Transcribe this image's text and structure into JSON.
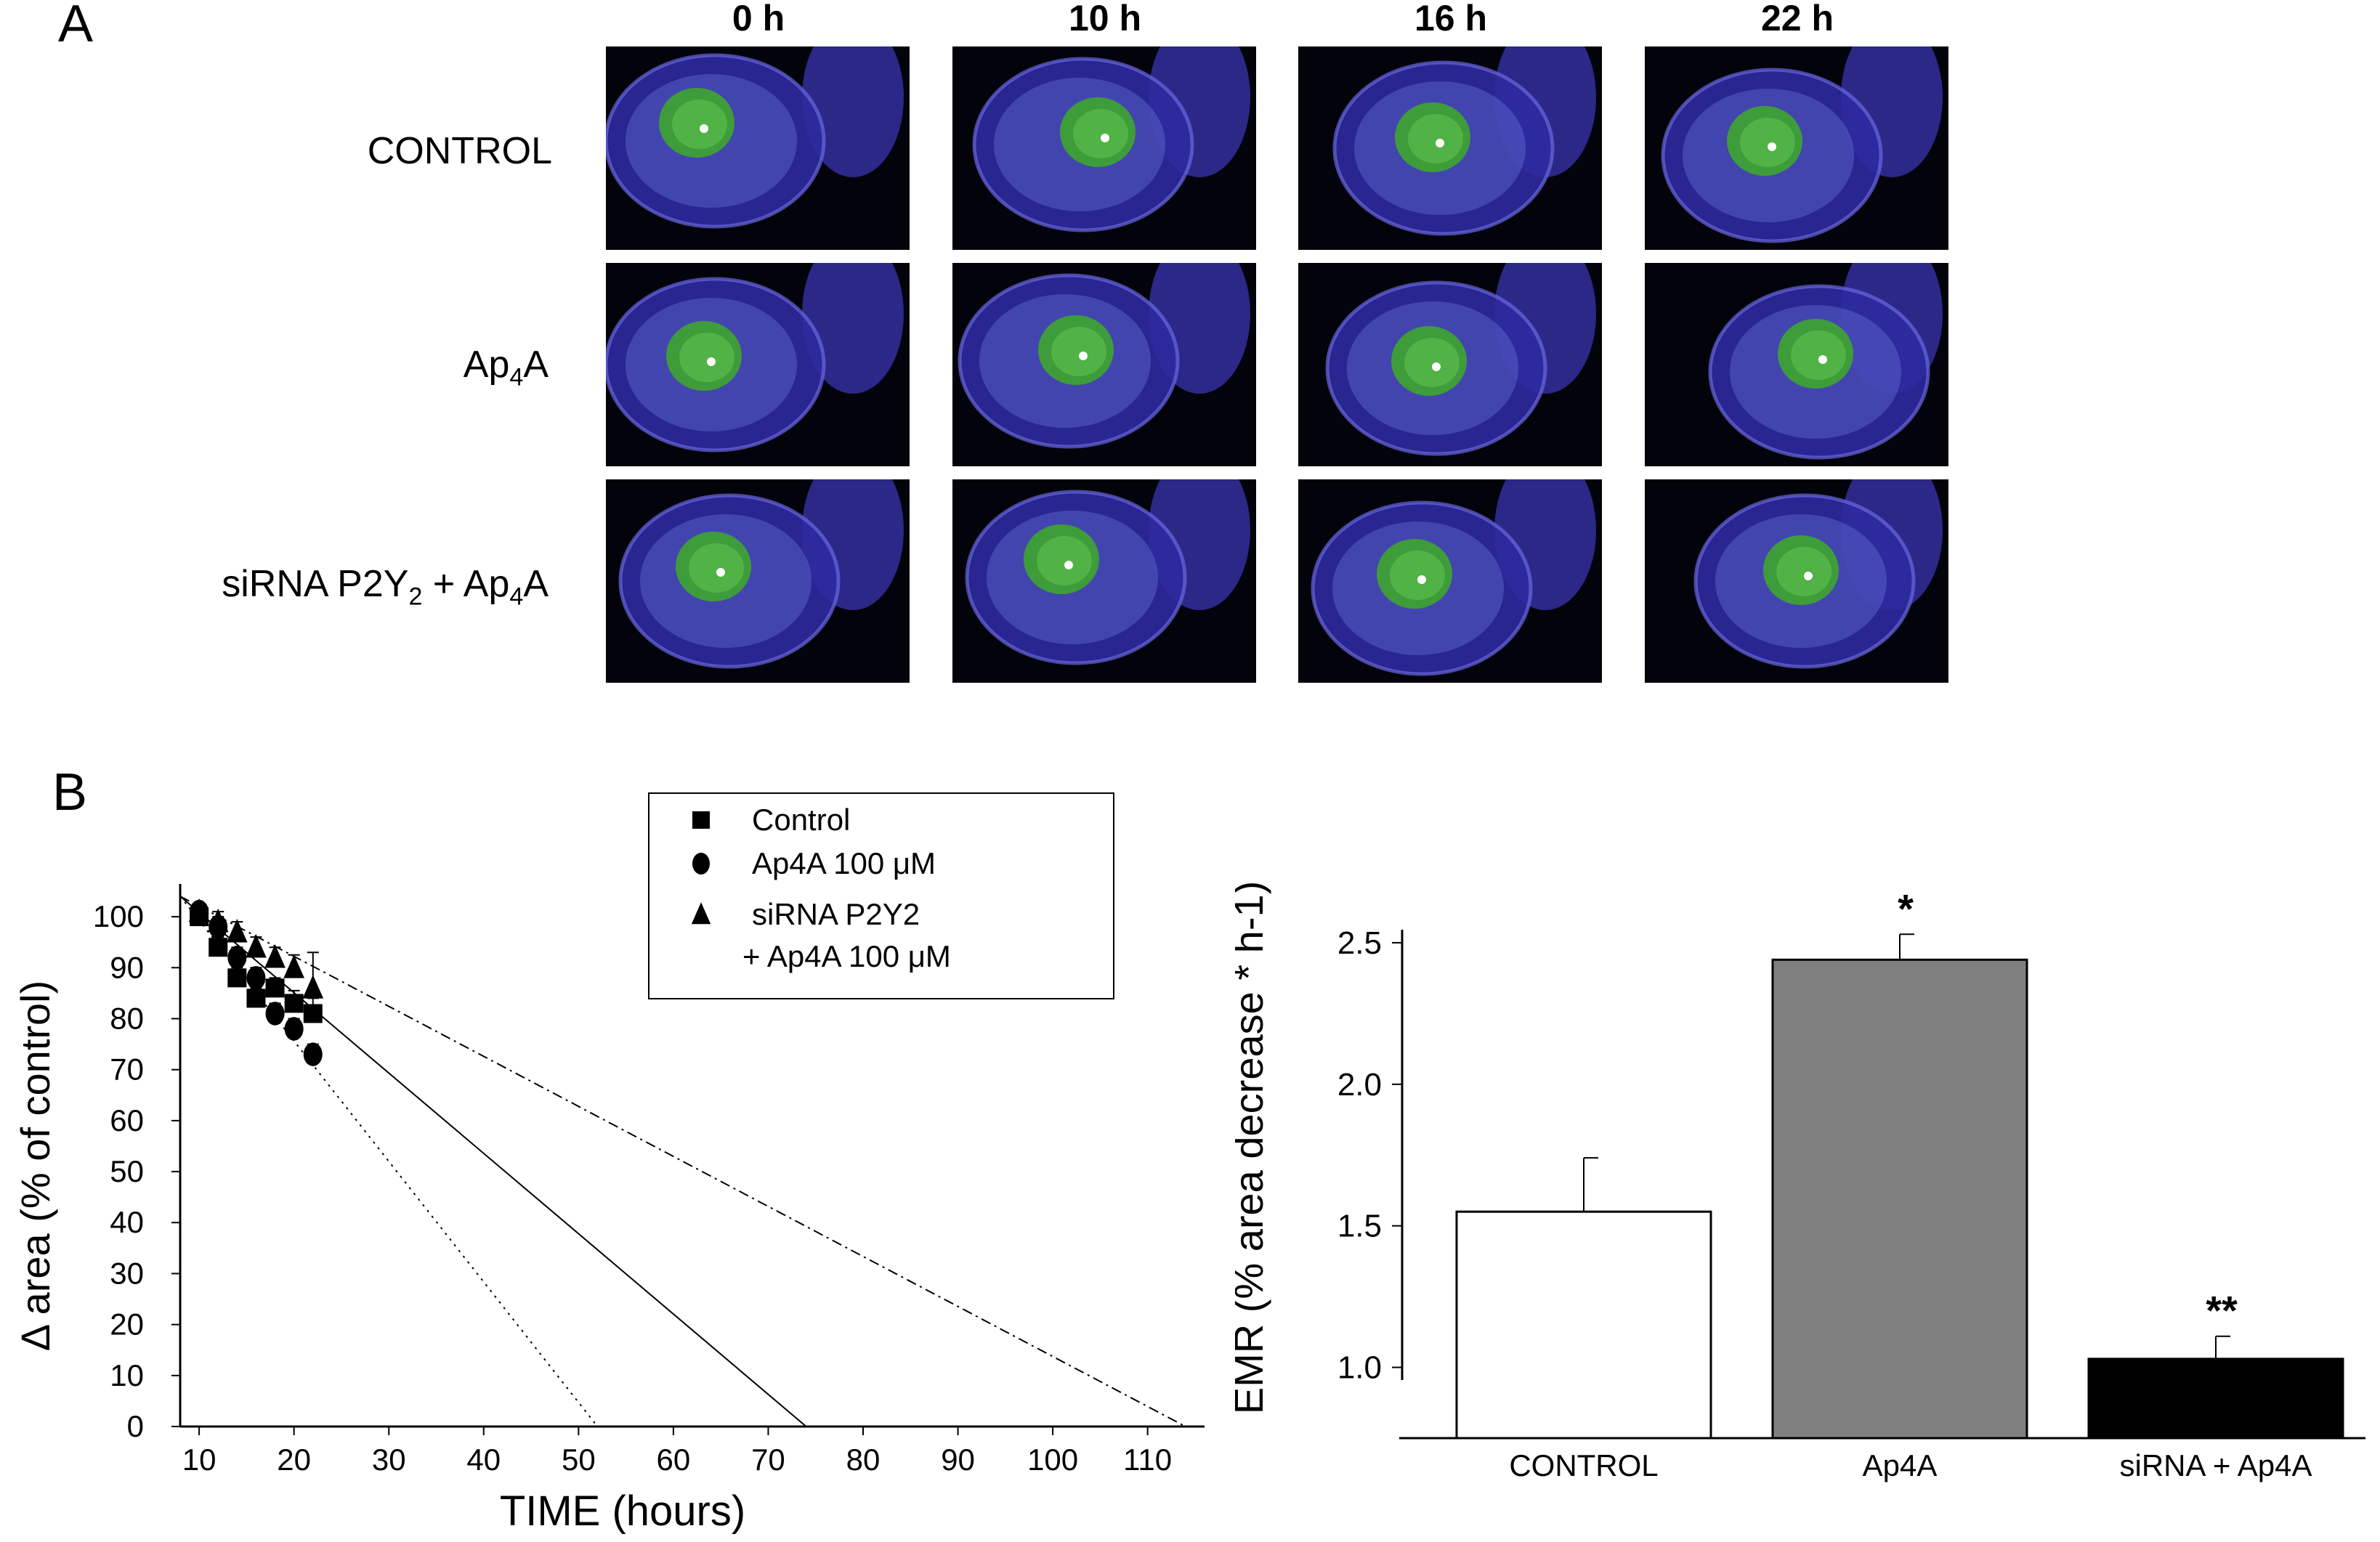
{
  "panel_a": {
    "letter": "A",
    "columns": [
      "0 h",
      "10 h",
      "16 h",
      "22 h"
    ],
    "rows": [
      {
        "label": "CONTROL",
        "sub": "",
        "tail": ""
      },
      {
        "label": "Ap",
        "sub": "4",
        "tail": "A"
      },
      {
        "label": "siRNA P2Y",
        "sub": "2",
        "tail": " + Ap4A"
      }
    ],
    "photo_description_icon": "eye-fluorescein-photo"
  },
  "panel_b": {
    "letter": "B"
  },
  "chart_data": [
    {
      "type": "scatter",
      "xlabel": "TIME (hours)",
      "ylabel": "Δ area (% of control)",
      "xlim": [
        8,
        116
      ],
      "ylim": [
        0,
        105
      ],
      "x_ticks": [
        10,
        20,
        30,
        40,
        50,
        60,
        70,
        80,
        90,
        100,
        110
      ],
      "y_ticks": [
        0,
        10,
        20,
        30,
        40,
        50,
        60,
        70,
        80,
        90,
        100
      ],
      "legend": {
        "position": "top-center",
        "entries": [
          {
            "marker": "square",
            "text": "Control"
          },
          {
            "marker": "circle",
            "text": "Ap4A 100 μM"
          },
          {
            "marker": "triangle",
            "text": "siRNA P2Y2",
            "text2": "+ Ap4A 100 μM"
          }
        ]
      },
      "series": [
        {
          "name": "Control",
          "marker": "square",
          "x": [
            10,
            12,
            14,
            16,
            18,
            20,
            22
          ],
          "y": [
            100,
            94,
            88,
            84,
            86,
            83,
            81
          ],
          "err": [
            1.5,
            2,
            2,
            2,
            2,
            2.5,
            3
          ],
          "fit": {
            "x": [
              8,
              74
            ],
            "y": [
              104,
              0
            ],
            "style": "solid"
          }
        },
        {
          "name": "Ap4A 100 μM",
          "marker": "circle",
          "x": [
            10,
            12,
            14,
            16,
            18,
            20,
            22
          ],
          "y": [
            101,
            98,
            92,
            88,
            81,
            78,
            73
          ],
          "err": [
            1.5,
            2,
            2,
            2,
            2,
            2,
            2
          ],
          "fit": {
            "x": [
              8,
              52
            ],
            "y": [
              104,
              0
            ],
            "style": "dotted"
          }
        },
        {
          "name": "siRNA P2Y2 + Ap4A 100 μM",
          "marker": "triangle",
          "x": [
            10,
            12,
            14,
            16,
            18,
            20,
            22
          ],
          "y": [
            101,
            99,
            97,
            94,
            92,
            90,
            86
          ],
          "err": [
            1.5,
            2,
            2,
            2,
            2,
            2.5,
            7
          ],
          "fit": {
            "x": [
              8,
              114
            ],
            "y": [
              104,
              0
            ],
            "style": "dashdot"
          }
        }
      ]
    },
    {
      "type": "bar",
      "ylabel": "EMR (% area decrease * h-1)",
      "ylim": [
        0.75,
        2.7
      ],
      "y_ticks": [
        1.0,
        1.5,
        2.0,
        2.5
      ],
      "y_tick_labels": [
        "1.0",
        "1.5",
        "2.0",
        "2.5"
      ],
      "categories": [
        "CONTROL",
        "Ap4A",
        "siRNA + Ap4A"
      ],
      "values": [
        1.55,
        2.44,
        1.03
      ],
      "errors": [
        0.19,
        0.09,
        0.08
      ],
      "annotations": [
        "",
        "*",
        "**"
      ],
      "colors": [
        "#ffffff",
        "#808080",
        "#000000"
      ]
    }
  ]
}
